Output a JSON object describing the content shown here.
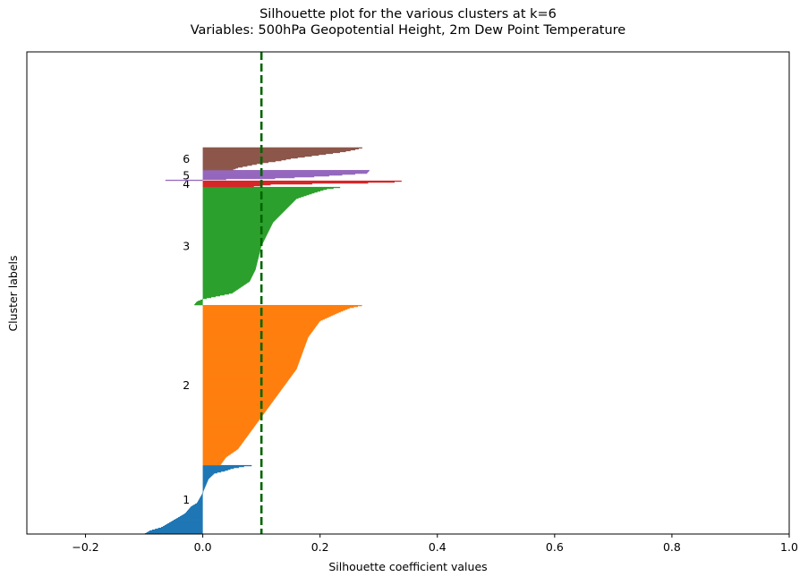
{
  "chart_data": {
    "type": "bar",
    "orientation": "horizontal",
    "title": "Silhouette plot for the various clusters at k=6",
    "subtitle": "Variables: 500hPa Geopotential Height, 2m Dew Point Temperature",
    "xlabel": "Silhouette coefficient values",
    "ylabel": "Cluster labels",
    "xlim": [
      -0.3,
      1.0
    ],
    "xticks": [
      "−0.2",
      "0.0",
      "0.2",
      "0.4",
      "0.6",
      "0.8",
      "1.0"
    ],
    "xtick_values": [
      -0.2,
      0.0,
      0.2,
      0.4,
      0.6,
      0.8,
      1.0
    ],
    "grid": false,
    "reference_line": {
      "x": 0.1,
      "style": "dashed",
      "color": "#006400"
    },
    "clusters": [
      {
        "label": "1",
        "color": "#1f77b4",
        "start": 0.0,
        "end": 0.143,
        "profile": [
          [
            0,
            0.09
          ],
          [
            0.02,
            0.07
          ],
          [
            0.05,
            0.05
          ],
          [
            0.08,
            0.04
          ],
          [
            0.12,
            0.02
          ],
          [
            0.2,
            0.01
          ],
          [
            0.3,
            0.005
          ],
          [
            0.4,
            0.0
          ],
          [
            0.55,
            -0.01
          ],
          [
            0.6,
            -0.02
          ],
          [
            0.7,
            -0.03
          ],
          [
            0.8,
            -0.05
          ],
          [
            0.9,
            -0.07
          ],
          [
            0.95,
            -0.09
          ],
          [
            1,
            -0.1
          ]
        ]
      },
      {
        "label": "2",
        "color": "#ff7f0e",
        "start": 0.143,
        "end": 0.475,
        "profile": [
          [
            0,
            0.275
          ],
          [
            0.02,
            0.25
          ],
          [
            0.05,
            0.23
          ],
          [
            0.1,
            0.2
          ],
          [
            0.15,
            0.19
          ],
          [
            0.2,
            0.18
          ],
          [
            0.3,
            0.17
          ],
          [
            0.4,
            0.16
          ],
          [
            0.5,
            0.14
          ],
          [
            0.6,
            0.12
          ],
          [
            0.7,
            0.1
          ],
          [
            0.8,
            0.08
          ],
          [
            0.9,
            0.06
          ],
          [
            0.95,
            0.04
          ],
          [
            1,
            0.03
          ]
        ]
      },
      {
        "label": "3",
        "color": "#2ca02c",
        "start": 0.475,
        "end": 0.72,
        "profile": [
          [
            0,
            0.24
          ],
          [
            0.02,
            0.21
          ],
          [
            0.05,
            0.19
          ],
          [
            0.1,
            0.16
          ],
          [
            0.2,
            0.14
          ],
          [
            0.3,
            0.12
          ],
          [
            0.4,
            0.11
          ],
          [
            0.5,
            0.1
          ],
          [
            0.6,
            0.095
          ],
          [
            0.7,
            0.09
          ],
          [
            0.8,
            0.08
          ],
          [
            0.9,
            0.05
          ],
          [
            0.93,
            0.02
          ],
          [
            0.95,
            0.0
          ],
          [
            0.97,
            -0.01
          ],
          [
            1,
            -0.015
          ]
        ]
      },
      {
        "label": "4",
        "color": "#d62728",
        "start": 0.72,
        "end": 0.733,
        "profile": [
          [
            0,
            0.345
          ],
          [
            0.3,
            0.32
          ],
          [
            0.6,
            0.12
          ],
          [
            1,
            0.08
          ]
        ]
      },
      {
        "label": "5",
        "color": "#9467bd",
        "start": 0.733,
        "end": 0.755,
        "profile": [
          [
            0,
            0.285
          ],
          [
            0.3,
            0.28
          ],
          [
            0.6,
            0.2
          ],
          [
            0.85,
            0.1
          ],
          [
            0.9,
            -0.02
          ],
          [
            1,
            -0.095
          ]
        ]
      },
      {
        "label": "6",
        "color": "#8c564b",
        "start": 0.755,
        "end": 0.802,
        "profile": [
          [
            0,
            0.275
          ],
          [
            0.1,
            0.26
          ],
          [
            0.2,
            0.24
          ],
          [
            0.3,
            0.21
          ],
          [
            0.4,
            0.18
          ],
          [
            0.5,
            0.15
          ],
          [
            0.6,
            0.13
          ],
          [
            0.7,
            0.1
          ],
          [
            0.8,
            0.08
          ],
          [
            0.9,
            0.06
          ],
          [
            1,
            0.05
          ]
        ]
      }
    ]
  }
}
